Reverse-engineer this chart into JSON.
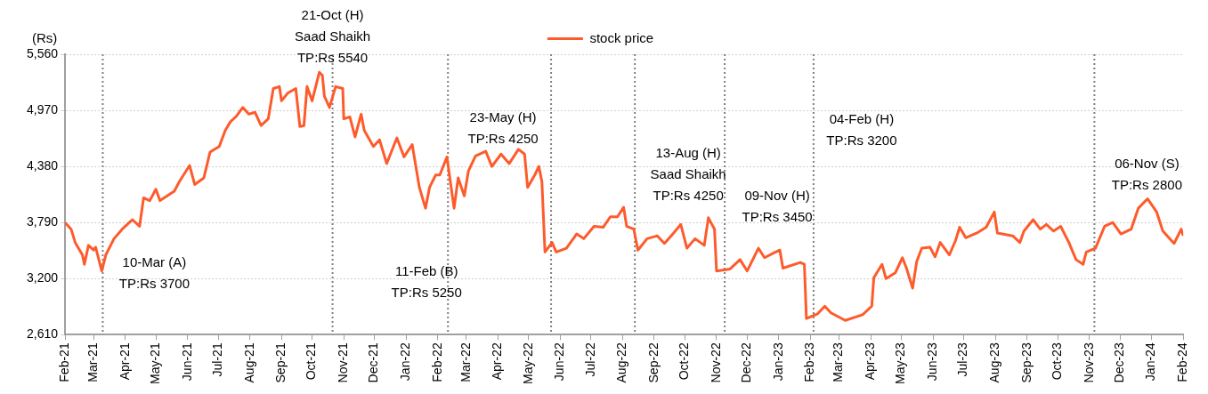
{
  "chart_data": {
    "type": "line",
    "ylabel": "(Rs)",
    "xlim": [
      "2021-02-01",
      "2024-02-01"
    ],
    "xticks": [
      {
        "value": "2021-02-01",
        "label": "Feb-21"
      },
      {
        "value": "2021-03-01",
        "label": "Mar-21"
      },
      {
        "value": "2021-04-01",
        "label": "Apr-21"
      },
      {
        "value": "2021-05-01",
        "label": "May-21"
      },
      {
        "value": "2021-06-01",
        "label": "Jun-21"
      },
      {
        "value": "2021-07-01",
        "label": "Jul-21"
      },
      {
        "value": "2021-08-01",
        "label": "Aug-21"
      },
      {
        "value": "2021-09-01",
        "label": "Sep-21"
      },
      {
        "value": "2021-10-01",
        "label": "Oct-21"
      },
      {
        "value": "2021-11-01",
        "label": "Nov-21"
      },
      {
        "value": "2021-12-01",
        "label": "Dec-21"
      },
      {
        "value": "2022-01-01",
        "label": "Jan-22"
      },
      {
        "value": "2022-02-01",
        "label": "Feb-22"
      },
      {
        "value": "2022-03-01",
        "label": "Mar-22"
      },
      {
        "value": "2022-04-01",
        "label": "Apr-22"
      },
      {
        "value": "2022-05-01",
        "label": "May-22"
      },
      {
        "value": "2022-06-01",
        "label": "Jun-22"
      },
      {
        "value": "2022-07-01",
        "label": "Jul-22"
      },
      {
        "value": "2022-08-01",
        "label": "Aug-22"
      },
      {
        "value": "2022-09-01",
        "label": "Sep-22"
      },
      {
        "value": "2022-10-01",
        "label": "Oct-22"
      },
      {
        "value": "2022-11-01",
        "label": "Nov-22"
      },
      {
        "value": "2022-12-01",
        "label": "Dec-22"
      },
      {
        "value": "2023-01-01",
        "label": "Jan-23"
      },
      {
        "value": "2023-02-01",
        "label": "Feb-23"
      },
      {
        "value": "2023-03-01",
        "label": "Mar-23"
      },
      {
        "value": "2023-04-01",
        "label": "Apr-23"
      },
      {
        "value": "2023-05-01",
        "label": "May-23"
      },
      {
        "value": "2023-06-01",
        "label": "Jun-23"
      },
      {
        "value": "2023-07-01",
        "label": "Jul-23"
      },
      {
        "value": "2023-08-01",
        "label": "Aug-23"
      },
      {
        "value": "2023-09-01",
        "label": "Sep-23"
      },
      {
        "value": "2023-10-01",
        "label": "Oct-23"
      },
      {
        "value": "2023-11-01",
        "label": "Nov-23"
      },
      {
        "value": "2023-12-01",
        "label": "Dec-23"
      },
      {
        "value": "2024-01-01",
        "label": "Jan-24"
      },
      {
        "value": "2024-02-01",
        "label": "Feb-24"
      }
    ],
    "ylim": [
      2610,
      5560
    ],
    "yticks": [
      {
        "value": 2610,
        "label": "2,610"
      },
      {
        "value": 3200,
        "label": "3,200"
      },
      {
        "value": 3790,
        "label": "3,790"
      },
      {
        "value": 4380,
        "label": "4,380"
      },
      {
        "value": 4970,
        "label": "4,970"
      },
      {
        "value": 5560,
        "label": "5,560"
      }
    ],
    "grid": "y",
    "legend": "top",
    "marker": "none",
    "line_style": "solid",
    "ref_lines": [
      {
        "axis": "x",
        "value": "2021-03-10",
        "label": "10-Mar (A)\nTP:Rs 3700",
        "color": "#808080",
        "line_style": "dotted"
      },
      {
        "axis": "x",
        "value": "2021-10-21",
        "label": "21-Oct (H)\nSaad Shaikh\nTP:Rs 5540",
        "color": "#808080",
        "line_style": "dotted"
      },
      {
        "axis": "x",
        "value": "2022-02-11",
        "label": "11-Feb (B)\nTP:Rs 5250",
        "color": "#808080",
        "line_style": "dotted"
      },
      {
        "axis": "x",
        "value": "2022-05-23",
        "label": "23-May (H)\nTP:Rs 4250",
        "color": "#808080",
        "line_style": "dotted"
      },
      {
        "axis": "x",
        "value": "2022-08-13",
        "label": "13-Aug (H)\nSaad Shaikh\nTP:Rs 4250",
        "color": "#808080",
        "line_style": "dotted"
      },
      {
        "axis": "x",
        "value": "2022-11-09",
        "label": "09-Nov (H)\nTP:Rs 3450",
        "color": "#808080",
        "line_style": "dotted"
      },
      {
        "axis": "x",
        "value": "2023-02-04",
        "label": "04-Feb (H)\nTP:Rs 3200",
        "color": "#808080",
        "line_style": "dotted"
      },
      {
        "axis": "x",
        "value": "2023-11-06",
        "label": "06-Nov (S)\nTP:Rs 2800",
        "color": "#808080",
        "line_style": "dotted"
      }
    ],
    "series": [
      {
        "name": "stock price",
        "color": "#fe5b2c",
        "x": [
          "2021-02-01",
          "2021-02-07",
          "2021-02-11",
          "2021-02-18",
          "2021-02-20",
          "2021-02-24",
          "2021-03-01",
          "2021-03-03",
          "2021-03-09",
          "2021-03-13",
          "2021-03-21",
          "2021-03-29",
          "2021-04-05",
          "2021-04-08",
          "2021-04-15",
          "2021-04-19",
          "2021-04-25",
          "2021-05-01",
          "2021-05-05",
          "2021-05-19",
          "2021-05-24",
          "2021-06-03",
          "2021-06-08",
          "2021-06-17",
          "2021-06-23",
          "2021-07-02",
          "2021-07-08",
          "2021-07-13",
          "2021-07-19",
          "2021-07-25",
          "2021-07-31",
          "2021-08-06",
          "2021-08-12",
          "2021-08-19",
          "2021-08-24",
          "2021-08-30",
          "2021-09-01",
          "2021-09-07",
          "2021-09-15",
          "2021-09-19",
          "2021-09-23",
          "2021-09-26",
          "2021-10-01",
          "2021-10-05",
          "2021-10-08",
          "2021-10-11",
          "2021-10-13",
          "2021-10-18",
          "2021-10-24",
          "2021-10-31",
          "2021-11-01",
          "2021-11-07",
          "2021-11-12",
          "2021-11-18",
          "2021-11-21",
          "2021-11-30",
          "2021-12-06",
          "2021-12-13",
          "2021-12-23",
          "2021-12-30",
          "2022-01-07",
          "2022-01-14",
          "2022-01-20",
          "2022-01-24",
          "2022-01-30",
          "2022-02-03",
          "2022-02-10",
          "2022-02-17",
          "2022-02-21",
          "2022-02-27",
          "2022-03-03",
          "2022-03-10",
          "2022-03-20",
          "2022-03-26",
          "2022-04-04",
          "2022-04-12",
          "2022-04-21",
          "2022-04-27",
          "2022-04-30",
          "2022-05-07",
          "2022-05-11",
          "2022-05-14",
          "2022-05-17",
          "2022-05-24",
          "2022-05-28",
          "2022-06-07",
          "2022-06-17",
          "2022-06-24",
          "2022-07-04",
          "2022-07-13",
          "2022-07-20",
          "2022-07-27",
          "2022-08-02",
          "2022-08-05",
          "2022-08-12",
          "2022-08-16",
          "2022-08-25",
          "2022-09-04",
          "2022-09-11",
          "2022-09-20",
          "2022-09-27",
          "2022-10-03",
          "2022-10-11",
          "2022-10-20",
          "2022-10-24",
          "2022-10-30",
          "2022-11-01",
          "2022-11-14",
          "2022-11-24",
          "2022-12-01",
          "2022-12-12",
          "2022-12-18",
          "2022-12-27",
          "2023-01-02",
          "2023-01-05",
          "2023-01-22",
          "2023-01-26",
          "2023-01-28",
          "2023-02-08",
          "2023-02-15",
          "2023-02-21",
          "2023-03-07",
          "2023-03-24",
          "2023-04-02",
          "2023-04-04",
          "2023-04-12",
          "2023-04-16",
          "2023-04-25",
          "2023-05-02",
          "2023-05-06",
          "2023-05-12",
          "2023-05-16",
          "2023-05-21",
          "2023-05-29",
          "2023-06-03",
          "2023-06-08",
          "2023-06-17",
          "2023-06-23",
          "2023-06-27",
          "2023-07-03",
          "2023-07-14",
          "2023-07-23",
          "2023-07-31",
          "2023-08-03",
          "2023-08-18",
          "2023-08-25",
          "2023-08-29",
          "2023-09-07",
          "2023-09-14",
          "2023-09-20",
          "2023-09-27",
          "2023-10-04",
          "2023-10-12",
          "2023-10-19",
          "2023-10-26",
          "2023-10-29",
          "2023-11-07",
          "2023-11-16",
          "2023-11-24",
          "2023-12-02",
          "2023-12-12",
          "2023-12-19",
          "2023-12-28",
          "2024-01-06",
          "2024-01-12",
          "2024-01-23",
          "2024-01-30",
          "2024-02-01"
        ],
        "values": [
          3790,
          3720,
          3580,
          3450,
          3350,
          3550,
          3500,
          3530,
          3280,
          3450,
          3620,
          3720,
          3790,
          3820,
          3750,
          4050,
          4020,
          4140,
          4020,
          4120,
          4220,
          4390,
          4190,
          4260,
          4530,
          4590,
          4760,
          4850,
          4910,
          5000,
          4930,
          4950,
          4810,
          4880,
          5200,
          5220,
          5070,
          5150,
          5200,
          4800,
          4810,
          5220,
          5070,
          5240,
          5370,
          5340,
          5120,
          5000,
          5220,
          5200,
          4880,
          4900,
          4690,
          4930,
          4760,
          4590,
          4660,
          4410,
          4680,
          4480,
          4610,
          4160,
          3940,
          4160,
          4290,
          4290,
          4480,
          3940,
          4260,
          4070,
          4330,
          4490,
          4540,
          4380,
          4510,
          4410,
          4560,
          4510,
          4160,
          4290,
          4380,
          4220,
          3480,
          3580,
          3480,
          3520,
          3670,
          3620,
          3750,
          3740,
          3850,
          3850,
          3950,
          3750,
          3720,
          3500,
          3620,
          3650,
          3570,
          3680,
          3770,
          3520,
          3620,
          3550,
          3840,
          3720,
          3280,
          3300,
          3400,
          3280,
          3520,
          3420,
          3470,
          3500,
          3310,
          3370,
          3350,
          2780,
          2830,
          2910,
          2840,
          2760,
          2820,
          2910,
          3210,
          3350,
          3200,
          3260,
          3420,
          3310,
          3100,
          3380,
          3520,
          3530,
          3430,
          3580,
          3450,
          3600,
          3740,
          3630,
          3680,
          3740,
          3900,
          3680,
          3650,
          3580,
          3700,
          3820,
          3720,
          3770,
          3700,
          3750,
          3580,
          3400,
          3350,
          3480,
          3520,
          3750,
          3790,
          3670,
          3720,
          3940,
          4040,
          3900,
          3700,
          3570,
          3720,
          3650
        ]
      }
    ]
  }
}
